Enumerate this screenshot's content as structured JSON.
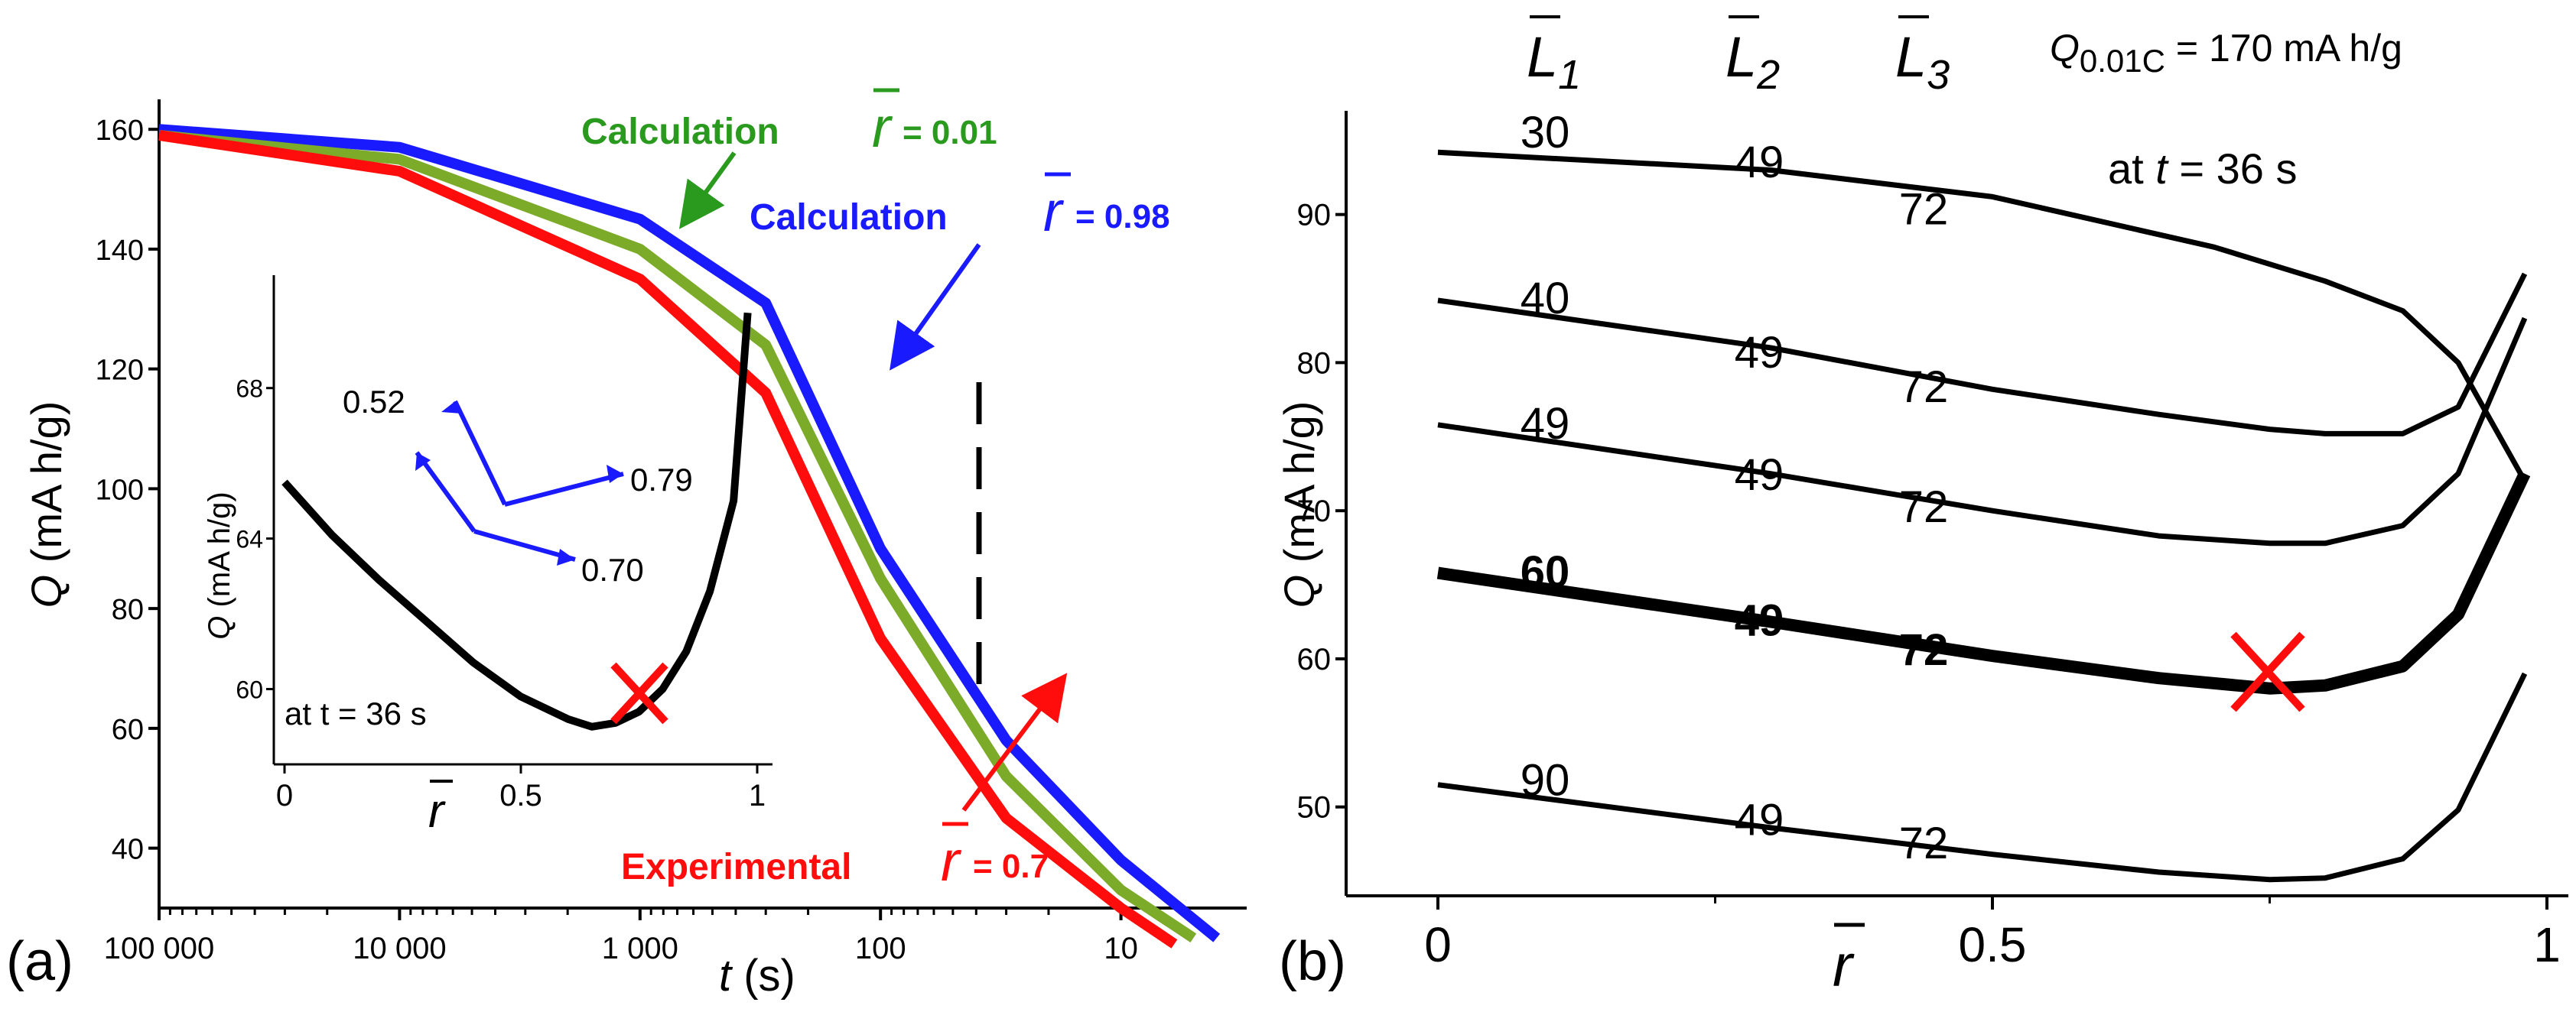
{
  "panel_a": {
    "label": "(a)",
    "ylabel_var": "Q",
    "ylabel_unit": " (mA h/g)",
    "xlabel_var": "t",
    "xlabel_unit": " (s)",
    "yticks": [
      "40",
      "60",
      "80",
      "100",
      "120",
      "140",
      "160"
    ],
    "xticks": [
      "100 000",
      "10 000",
      "1 000",
      "100",
      "10"
    ],
    "annotations": {
      "calc1": "Calculation",
      "r1": "= 0.01",
      "calc2": "Calculation",
      "r2": "= 0.98",
      "exp": "Experimental",
      "r3": "= 0.7"
    },
    "colors": {
      "calc1": "#2a9a1e",
      "calc1_line": "#7cab2a",
      "calc2": "#1a1aff",
      "exp": "#ff0d0d"
    }
  },
  "inset": {
    "ylabel_var": "Q",
    "ylabel_unit": " (mA h/g)",
    "yticks": [
      "60",
      "64",
      "68"
    ],
    "xticks": [
      "0",
      "0.5",
      "1"
    ],
    "time_label": "at t = 36 s",
    "labels": {
      "a": "0.52",
      "b": "0.79",
      "c": "0.70"
    }
  },
  "panel_b": {
    "label": "(b)",
    "ylabel_var": "Q",
    "ylabel_unit": " (mA h/g)",
    "yticks": [
      "50",
      "60",
      "70",
      "80",
      "90"
    ],
    "xticks": [
      "0",
      "0.5",
      "1"
    ],
    "header_L": [
      "L",
      "1",
      "L",
      "2",
      "L",
      "3"
    ],
    "q_label": "Q",
    "q_sub": "0.01C",
    "q_value": " = 170 mA h/g",
    "time_label_pre": "at ",
    "time_label_var": "t",
    "time_label_post": " = 36 s",
    "curve_labels": [
      [
        "30",
        "49",
        "72"
      ],
      [
        "40",
        "49",
        "72"
      ],
      [
        "49",
        "49",
        "72"
      ],
      [
        "60",
        "49",
        "72"
      ],
      [
        "90",
        "49",
        "72"
      ]
    ]
  },
  "chart_data": [
    {
      "type": "line",
      "xlabel": "t (s)",
      "ylabel": "Q (mA h/g)",
      "x_scale": "log, reversed",
      "ylim": [
        30,
        165
      ],
      "series": [
        {
          "name": "Calculation r̄ = 0.98",
          "x": [
            100000,
            10000,
            1000,
            300,
            100,
            30,
            10,
            4
          ],
          "y": [
            160,
            157,
            145,
            131,
            90,
            58,
            38,
            25
          ]
        },
        {
          "name": "Calculation r̄ = 0.01",
          "x": [
            100000,
            10000,
            1000,
            300,
            100,
            30,
            10,
            5
          ],
          "y": [
            159,
            155,
            140,
            124,
            85,
            52,
            33,
            25
          ]
        },
        {
          "name": "Experimental r̄ = 0.7",
          "x": [
            100000,
            10000,
            1000,
            300,
            100,
            30,
            10,
            6
          ],
          "y": [
            159,
            153,
            135,
            116,
            75,
            45,
            30,
            24
          ]
        }
      ]
    },
    {
      "type": "line",
      "title": "inset",
      "xlabel": "r̄",
      "ylabel": "Q (mA h/g)",
      "xlim": [
        0,
        1
      ],
      "ylim": [
        58,
        71
      ],
      "series": [
        {
          "name": "",
          "x": [
            0,
            0.1,
            0.2,
            0.3,
            0.4,
            0.5,
            0.6,
            0.65,
            0.7,
            0.75,
            0.8,
            0.85,
            0.9,
            0.95,
            0.98
          ],
          "y": [
            65.5,
            64.1,
            62.9,
            61.8,
            60.7,
            59.8,
            59.2,
            59.0,
            59.1,
            59.4,
            60.0,
            61.0,
            62.6,
            65.0,
            70.0
          ]
        }
      ]
    },
    {
      "type": "line",
      "title": "Q0.01C = 170 mA h/g at t = 36 s",
      "xlabel": "r̄",
      "ylabel": "Q (mA h/g)",
      "xlim": [
        0,
        1
      ],
      "ylim": [
        44,
        97
      ],
      "series": [
        {
          "name": "L1 = 30",
          "x": [
            0,
            0.3,
            0.5,
            0.7,
            0.8,
            0.87,
            0.92,
            0.98
          ],
          "y": [
            94.2,
            93.0,
            91.2,
            87.8,
            85.5,
            83.5,
            80.0,
            72.0
          ]
        },
        {
          "name": "L1 = 40",
          "x": [
            0,
            0.3,
            0.5,
            0.65,
            0.75,
            0.8,
            0.87,
            0.92,
            0.98
          ],
          "y": [
            84.2,
            81.0,
            78.2,
            76.5,
            75.5,
            75.2,
            75.2,
            77.0,
            86.0
          ]
        },
        {
          "name": "L1 = 49",
          "x": [
            0,
            0.3,
            0.5,
            0.65,
            0.75,
            0.8,
            0.87,
            0.92,
            0.98
          ],
          "y": [
            75.8,
            72.5,
            70.0,
            68.3,
            67.8,
            67.8,
            69.0,
            72.5,
            83.0
          ]
        },
        {
          "name": "L1 = 60",
          "x": [
            0,
            0.3,
            0.5,
            0.65,
            0.75,
            0.8,
            0.87,
            0.92,
            0.98
          ],
          "y": [
            65.8,
            62.5,
            60.2,
            58.7,
            58.0,
            58.2,
            59.5,
            63.0,
            72.5
          ]
        },
        {
          "name": "L1 = 90",
          "x": [
            0,
            0.3,
            0.5,
            0.65,
            0.75,
            0.8,
            0.87,
            0.92,
            0.98
          ],
          "y": [
            51.5,
            48.6,
            46.8,
            45.6,
            45.1,
            45.2,
            46.5,
            49.8,
            59.0
          ]
        }
      ]
    }
  ]
}
